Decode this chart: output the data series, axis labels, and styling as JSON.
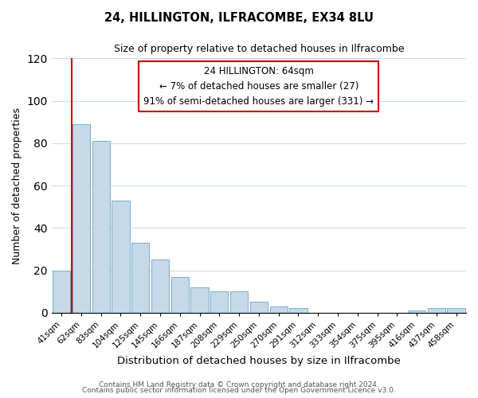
{
  "title": "24, HILLINGTON, ILFRACOMBE, EX34 8LU",
  "subtitle": "Size of property relative to detached houses in Ilfracombe",
  "xlabel": "Distribution of detached houses by size in Ilfracombe",
  "ylabel": "Number of detached properties",
  "bar_labels": [
    "41sqm",
    "62sqm",
    "83sqm",
    "104sqm",
    "125sqm",
    "145sqm",
    "166sqm",
    "187sqm",
    "208sqm",
    "229sqm",
    "250sqm",
    "270sqm",
    "291sqm",
    "312sqm",
    "333sqm",
    "354sqm",
    "375sqm",
    "395sqm",
    "416sqm",
    "437sqm",
    "458sqm"
  ],
  "bar_heights": [
    20,
    89,
    81,
    53,
    33,
    25,
    17,
    12,
    10,
    10,
    5,
    3,
    2,
    0,
    0,
    0,
    0,
    0,
    1,
    2,
    2
  ],
  "bar_color": "#c5d9ea",
  "bar_edge_color": "#7aaec8",
  "vline_color": "#cc0000",
  "ylim": [
    0,
    120
  ],
  "yticks": [
    0,
    20,
    40,
    60,
    80,
    100,
    120
  ],
  "annotation_title": "24 HILLINGTON: 64sqm",
  "annotation_line1": "← 7% of detached houses are smaller (27)",
  "annotation_line2": "91% of semi-detached houses are larger (331) →",
  "footer_line1": "Contains HM Land Registry data © Crown copyright and database right 2024.",
  "footer_line2": "Contains public sector information licensed under the Open Government Licence v3.0.",
  "background_color": "#ffffff",
  "grid_color": "#ccdde8"
}
